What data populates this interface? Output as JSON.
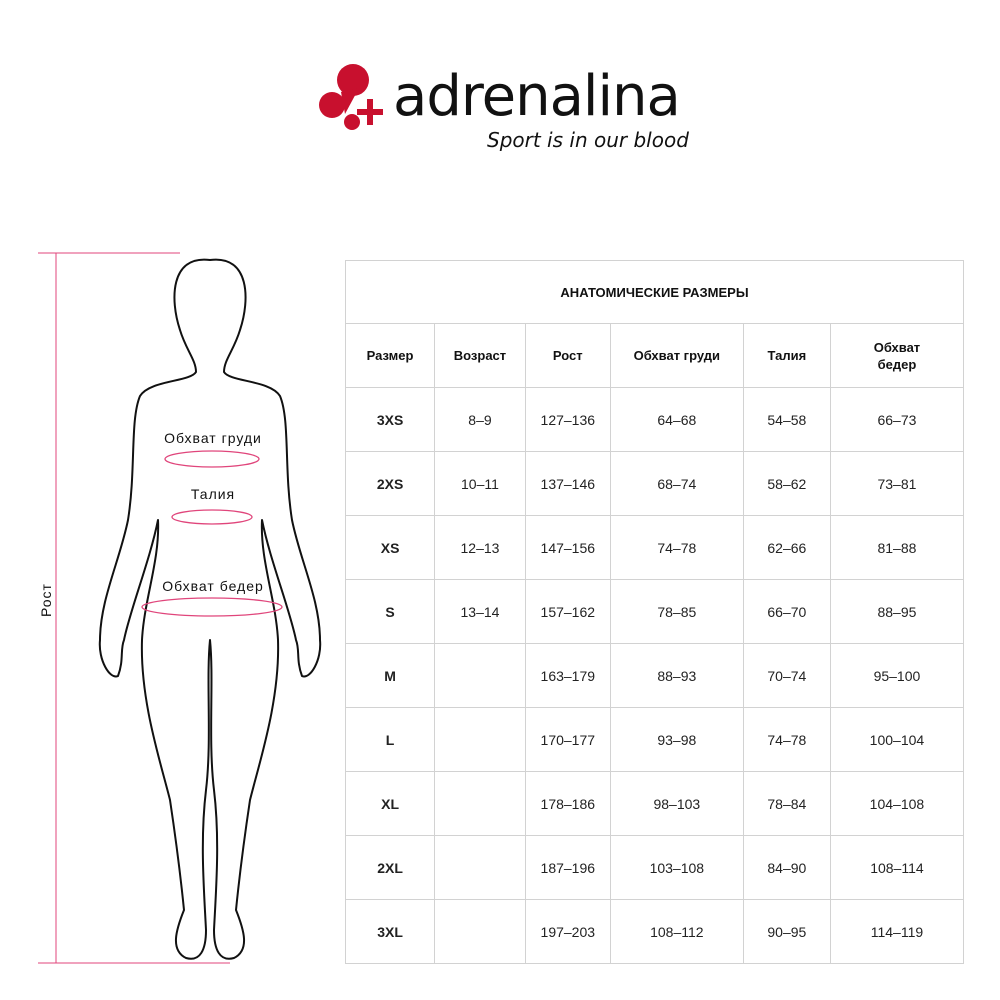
{
  "brand": {
    "name": "adrenalina",
    "tagline": "Sport is in our blood",
    "accent_color": "#c8102e"
  },
  "figure": {
    "height_label": "Рост",
    "chest_label": "Обхват груди",
    "waist_label": "Талия",
    "hips_label": "Обхват бедер",
    "measure_color": "#e0457b"
  },
  "table": {
    "title": "АНАТОМИЧЕСКИЕ РАЗМЕРЫ",
    "columns": [
      "Размер",
      "Возраст",
      "Рост",
      "Обхват груди",
      "Талия",
      "Обхват бедер"
    ],
    "rows": [
      [
        "3XS",
        "8–9",
        "127–136",
        "64–68",
        "54–58",
        "66–73"
      ],
      [
        "2XS",
        "10–11",
        "137–146",
        "68–74",
        "58–62",
        "73–81"
      ],
      [
        "XS",
        "12–13",
        "147–156",
        "74–78",
        "62–66",
        "81–88"
      ],
      [
        "S",
        "13–14",
        "157–162",
        "78–85",
        "66–70",
        "88–95"
      ],
      [
        "M",
        "",
        "163–179",
        "88–93",
        "70–74",
        "95–100"
      ],
      [
        "L",
        "",
        "170–177",
        "93–98",
        "74–78",
        "100–104"
      ],
      [
        "XL",
        "",
        "178–186",
        "98–103",
        "78–84",
        "104–108"
      ],
      [
        "2XL",
        "",
        "187–196",
        "103–108",
        "84–90",
        "108–114"
      ],
      [
        "3XL",
        "",
        "197–203",
        "108–112",
        "90–95",
        "114–119"
      ]
    ]
  }
}
